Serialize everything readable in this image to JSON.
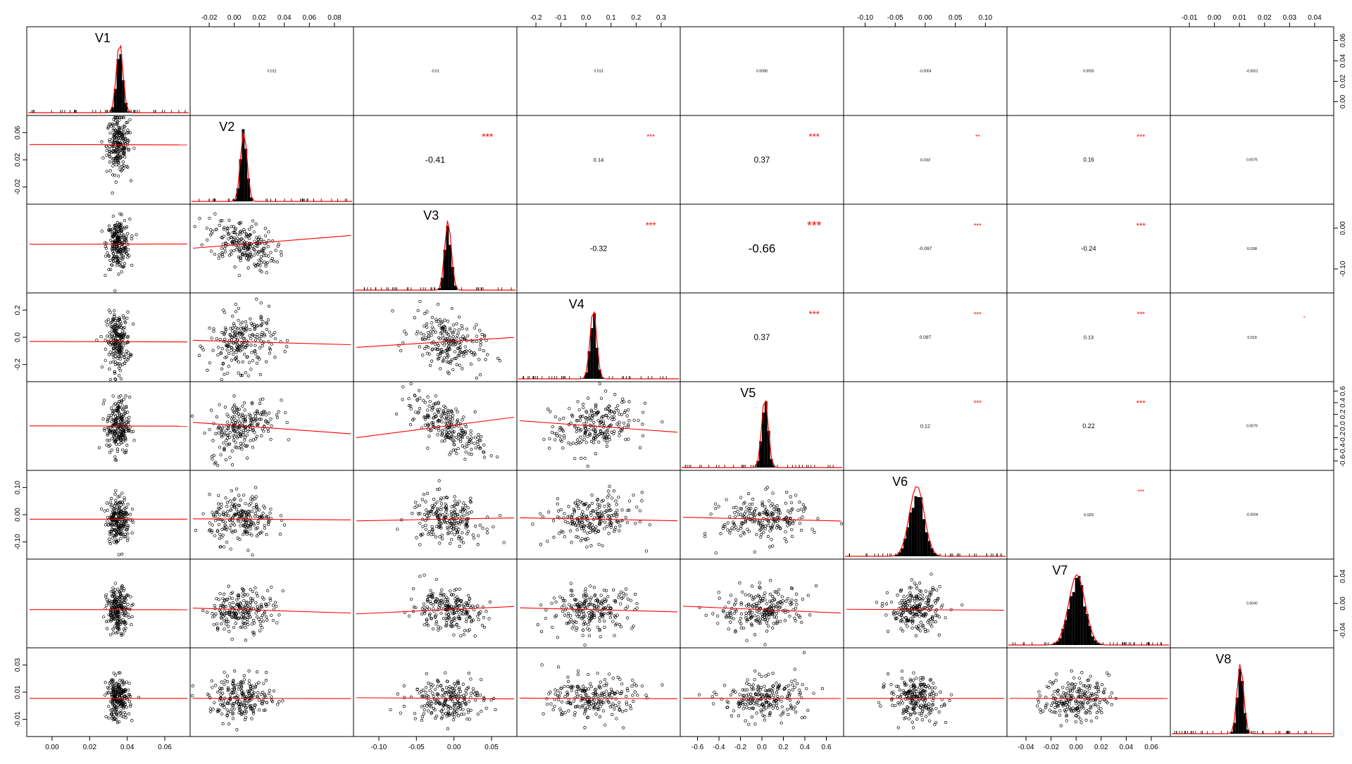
{
  "chart_data": {
    "type": "scatter-matrix",
    "variables": [
      "V1",
      "V2",
      "V3",
      "V4",
      "V5",
      "V6",
      "V7",
      "V8"
    ],
    "colors": {
      "fit_line": "#ff0000",
      "stars": "#ff0000",
      "points": "#000000",
      "frame": "#000000"
    },
    "axis_ticks": {
      "top": [
        {
          "col": 1,
          "labels": [
            "-0.02",
            "0.00",
            "0.02",
            "0.04",
            "0.06",
            "0.08"
          ]
        },
        {
          "col": 3,
          "labels": [
            "-0.2",
            "-0.1",
            "0.0",
            "0.1",
            "0.2",
            "0.3"
          ]
        },
        {
          "col": 5,
          "labels": [
            "-0.10",
            "-0.05",
            "0.00",
            "0.05",
            "0.10"
          ]
        },
        {
          "col": 7,
          "labels": [
            "-0.01",
            "0.00",
            "0.01",
            "0.02",
            "0.03",
            "0.04"
          ]
        }
      ],
      "bottom": [
        {
          "col": 0,
          "labels": [
            "0.00",
            "0.02",
            "0.04",
            "0.06"
          ]
        },
        {
          "col": 2,
          "labels": [
            "-0.10",
            "-0.05",
            "0.00",
            "0.05"
          ]
        },
        {
          "col": 4,
          "labels": [
            "-0.6",
            "-0.4",
            "-0.2",
            "0.0",
            "0.2",
            "0.4",
            "0.6"
          ]
        },
        {
          "col": 6,
          "labels": [
            "-0.04",
            "-0.02",
            "0.00",
            "0.02",
            "0.04",
            "0.06"
          ]
        }
      ],
      "left": [
        {
          "row": 1,
          "labels": [
            "-0.02",
            "0.02",
            "0.06"
          ]
        },
        {
          "row": 3,
          "labels": [
            "-0.2",
            "0.0",
            "0.2"
          ]
        },
        {
          "row": 5,
          "labels": [
            "-0.10",
            "0.00",
            "0.10"
          ]
        },
        {
          "row": 7,
          "labels": [
            "-0.01",
            "0.01",
            "0.03"
          ]
        }
      ],
      "right": [
        {
          "row": 0,
          "labels": [
            "0.00",
            "0.02",
            "0.04",
            "0.06"
          ]
        },
        {
          "row": 2,
          "labels": [
            "-0.10",
            "0.00"
          ]
        },
        {
          "row": 4,
          "labels": [
            "-0.6",
            "-0.4",
            "-0.2",
            "0.0",
            "0.2",
            "0.4",
            "0.6"
          ]
        },
        {
          "row": 6,
          "labels": [
            "-0.04",
            "0.00",
            "0.04"
          ]
        }
      ]
    },
    "correlations": [
      {
        "row": 0,
        "col": 1,
        "text": "0.012",
        "stars": ""
      },
      {
        "row": 0,
        "col": 2,
        "text": "-0.01",
        "stars": ""
      },
      {
        "row": 0,
        "col": 3,
        "text": "0.013",
        "stars": ""
      },
      {
        "row": 0,
        "col": 4,
        "text": "0.0088",
        "stars": ""
      },
      {
        "row": 0,
        "col": 5,
        "text": "-0.0004",
        "stars": ""
      },
      {
        "row": 0,
        "col": 6,
        "text": "0.0055",
        "stars": ""
      },
      {
        "row": 0,
        "col": 7,
        "text": "-0.0001",
        "stars": ""
      },
      {
        "row": 1,
        "col": 2,
        "text": "-0.41",
        "stars": "***"
      },
      {
        "row": 1,
        "col": 3,
        "text": "0.14",
        "stars": "***"
      },
      {
        "row": 1,
        "col": 4,
        "text": "0.37",
        "stars": "***"
      },
      {
        "row": 1,
        "col": 5,
        "text": "0.033",
        "stars": "**"
      },
      {
        "row": 1,
        "col": 6,
        "text": "0.16",
        "stars": "***"
      },
      {
        "row": 1,
        "col": 7,
        "text": "0.0076",
        "stars": ""
      },
      {
        "row": 2,
        "col": 3,
        "text": "-0.32",
        "stars": "***"
      },
      {
        "row": 2,
        "col": 4,
        "text": "-0.66",
        "stars": "***"
      },
      {
        "row": 2,
        "col": 5,
        "text": "-0.097",
        "stars": "***"
      },
      {
        "row": 2,
        "col": 6,
        "text": "-0.24",
        "stars": "***"
      },
      {
        "row": 2,
        "col": 7,
        "text": "0.038",
        "stars": ""
      },
      {
        "row": 3,
        "col": 4,
        "text": "0.37",
        "stars": "***"
      },
      {
        "row": 3,
        "col": 5,
        "text": "0.097",
        "stars": "***"
      },
      {
        "row": 3,
        "col": 6,
        "text": "0.13",
        "stars": "***"
      },
      {
        "row": 3,
        "col": 7,
        "text": "0.019",
        "stars": "."
      },
      {
        "row": 4,
        "col": 5,
        "text": "0.12",
        "stars": "***"
      },
      {
        "row": 4,
        "col": 6,
        "text": "0.22",
        "stars": "***"
      },
      {
        "row": 4,
        "col": 7,
        "text": "0.0079",
        "stars": ""
      },
      {
        "row": 5,
        "col": 6,
        "text": "0.029",
        "stars": "***"
      },
      {
        "row": 5,
        "col": 7,
        "text": "-0.0004",
        "stars": ""
      },
      {
        "row": 6,
        "col": 7,
        "text": "0.0040",
        "stars": ""
      }
    ]
  }
}
